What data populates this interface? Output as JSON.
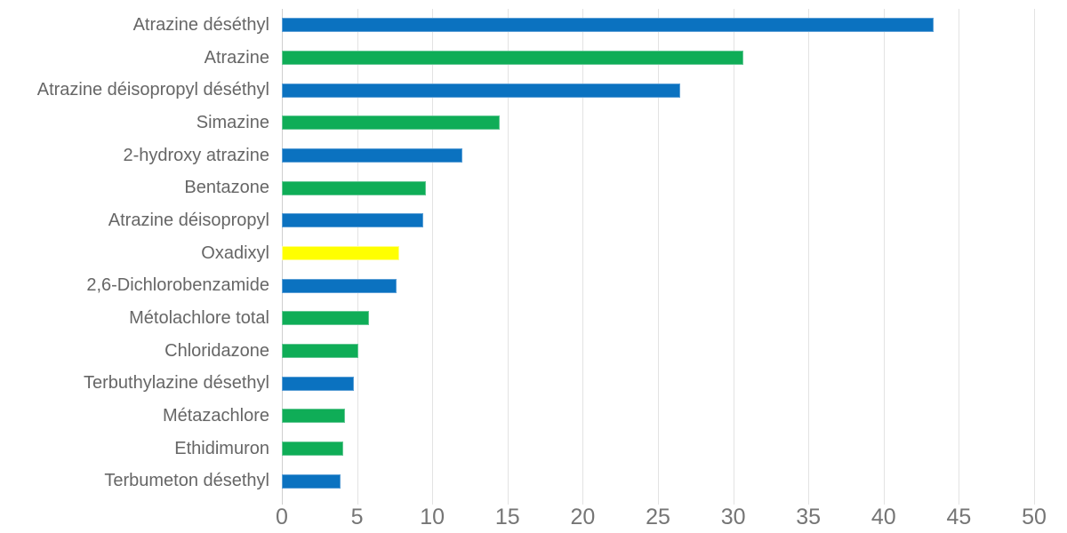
{
  "chart_data": {
    "type": "bar",
    "orientation": "horizontal",
    "title": "",
    "xlabel": "",
    "ylabel": "",
    "xlim": [
      0,
      50
    ],
    "xticks": [
      0,
      5,
      10,
      15,
      20,
      25,
      30,
      35,
      40,
      45,
      50
    ],
    "grid": true,
    "legend": "none",
    "categories": [
      "Atrazine déséthyl",
      "Atrazine",
      "Atrazine déisopropyl déséthyl",
      "Simazine",
      "2-hydroxy atrazine",
      "Bentazone",
      "Atrazine déisopropyl",
      "Oxadixyl",
      "2,6-Dichlorobenzamide",
      "Métolachlore total",
      "Chloridazone",
      "Terbuthylazine désethyl",
      "Métazachlore",
      "Ethidimuron",
      "Terbumeton désethyl"
    ],
    "values": [
      43.3,
      30.7,
      26.5,
      14.5,
      12.0,
      9.6,
      9.4,
      7.8,
      7.6,
      5.8,
      5.1,
      4.8,
      4.2,
      4.1,
      3.9
    ],
    "bar_colors": [
      "blue",
      "green",
      "blue",
      "green",
      "blue",
      "green",
      "blue",
      "yellow",
      "blue",
      "green",
      "green",
      "blue",
      "green",
      "green",
      "blue"
    ],
    "palette": {
      "blue": {
        "fill": "#0b72c0",
        "edge": "#5b9fd6"
      },
      "green": {
        "fill": "#0fad57",
        "edge": "#63c793"
      },
      "yellow": {
        "fill": "#ffff00",
        "edge": "#ffff8a"
      }
    },
    "axis_colors": {
      "gridline": "#e3e3e3",
      "axis_line": "#cfcfcf",
      "tick_text": "#757575",
      "category_text": "#666666"
    }
  }
}
